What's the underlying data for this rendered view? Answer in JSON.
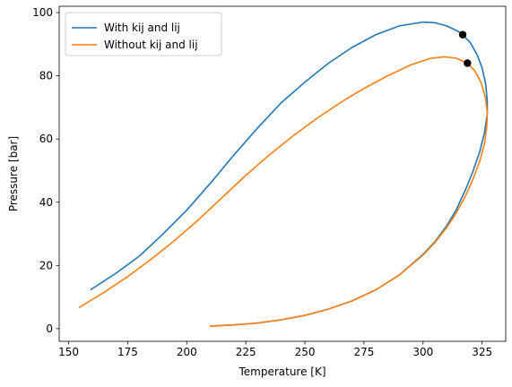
{
  "chart_data": {
    "type": "line",
    "title": "",
    "xlabel": "Temperature [K]",
    "ylabel": "Pressure [bar]",
    "xlim": [
      146,
      335
    ],
    "ylim": [
      -4,
      102
    ],
    "xticks": [
      150,
      175,
      200,
      225,
      250,
      275,
      300,
      325
    ],
    "yticks": [
      0,
      20,
      40,
      60,
      80,
      100
    ],
    "grid": false,
    "legend_position": "upper left",
    "series": [
      {
        "name": "With kij and lij",
        "color": "#1f77b4",
        "points": [
          [
            159.5,
            12.4
          ],
          [
            170,
            17.5
          ],
          [
            180,
            23.0
          ],
          [
            190,
            30.0
          ],
          [
            200,
            37.5
          ],
          [
            210,
            46.0
          ],
          [
            220,
            55.0
          ],
          [
            230,
            63.5
          ],
          [
            240,
            71.5
          ],
          [
            250,
            78.0
          ],
          [
            260,
            84.0
          ],
          [
            270,
            89.0
          ],
          [
            280,
            93.0
          ],
          [
            290,
            95.8
          ],
          [
            300,
            97.0
          ],
          [
            305,
            96.8
          ],
          [
            310,
            95.8
          ],
          [
            315,
            94.0
          ],
          [
            316.8,
            93.0
          ],
          [
            320,
            90.5
          ],
          [
            323,
            86.5
          ],
          [
            325,
            82.5
          ],
          [
            326.5,
            77.5
          ],
          [
            327.2,
            72.0
          ],
          [
            327.2,
            68.0
          ],
          [
            326,
            62.0
          ],
          [
            324,
            56.0
          ],
          [
            321,
            49.5
          ],
          [
            318,
            44.0
          ],
          [
            314,
            37.5
          ],
          [
            310,
            32.5
          ],
          [
            305,
            27.5
          ],
          [
            300,
            23.5
          ],
          [
            290,
            17.0
          ],
          [
            280,
            12.3
          ],
          [
            270,
            8.8
          ],
          [
            260,
            6.2
          ],
          [
            250,
            4.2
          ],
          [
            240,
            2.8
          ],
          [
            230,
            1.8
          ],
          [
            220,
            1.2
          ],
          [
            210,
            0.8
          ]
        ]
      },
      {
        "name": "Without kij and lij",
        "color": "#ff7f0e",
        "points": [
          [
            154.5,
            6.7
          ],
          [
            165,
            11.5
          ],
          [
            175,
            16.5
          ],
          [
            185,
            22.0
          ],
          [
            195,
            28.0
          ],
          [
            205,
            34.5
          ],
          [
            215,
            41.5
          ],
          [
            225,
            48.5
          ],
          [
            235,
            55.0
          ],
          [
            245,
            61.0
          ],
          [
            255,
            66.5
          ],
          [
            265,
            71.5
          ],
          [
            275,
            76.0
          ],
          [
            285,
            80.0
          ],
          [
            295,
            83.5
          ],
          [
            303,
            85.5
          ],
          [
            309,
            86.0
          ],
          [
            314,
            85.6
          ],
          [
            318.8,
            84.0
          ],
          [
            322,
            81.5
          ],
          [
            324.5,
            78.0
          ],
          [
            326.3,
            73.5
          ],
          [
            327.2,
            68.5
          ],
          [
            327,
            64.0
          ],
          [
            326,
            58.5
          ],
          [
            324,
            53.0
          ],
          [
            321,
            47.0
          ],
          [
            318,
            42.0
          ],
          [
            314,
            36.5
          ],
          [
            310,
            32.0
          ],
          [
            305,
            27.2
          ],
          [
            300,
            23.3
          ],
          [
            290,
            17.0
          ],
          [
            280,
            12.3
          ],
          [
            270,
            8.8
          ],
          [
            260,
            6.2
          ],
          [
            250,
            4.2
          ],
          [
            240,
            2.8
          ],
          [
            230,
            1.8
          ],
          [
            220,
            1.2
          ],
          [
            210,
            0.8
          ]
        ]
      }
    ],
    "markers": [
      {
        "x": 316.8,
        "y": 93.0,
        "color": "#000000"
      },
      {
        "x": 318.8,
        "y": 84.0,
        "color": "#000000"
      }
    ]
  }
}
